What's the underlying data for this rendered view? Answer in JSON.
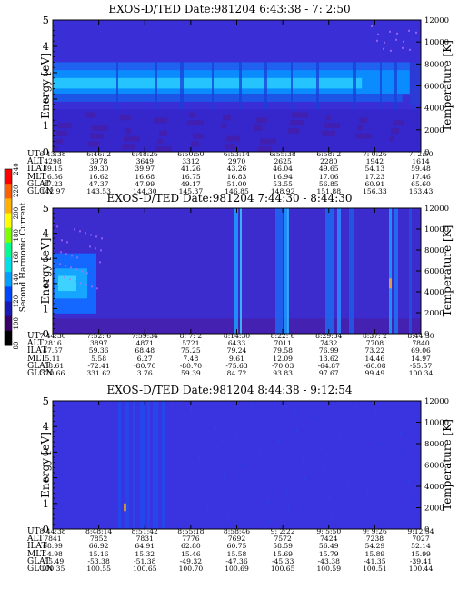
{
  "colorbar": {
    "title": "Second Harmonic Current",
    "ticks": [
      "80",
      "100",
      "120",
      "140",
      "160",
      "180",
      "200",
      "220",
      "240"
    ],
    "colors": [
      "#000000",
      "#3a006a",
      "#1a1ab4",
      "#0046ff",
      "#00a0ff",
      "#00e0e6",
      "#00ff90",
      "#80ff00",
      "#ffff00",
      "#ffb000",
      "#ff6000",
      "#ff0000"
    ]
  },
  "panels": [
    {
      "title": "EXOS-D/TED   Date:981204   6:43:38 - 7: 2:50",
      "ylabel_left": "Energy [eV]",
      "ylabel_right": "Temperature [K]",
      "yticks_left": [
        "0",
        "1",
        "2",
        "3",
        "4",
        "5"
      ],
      "yticks_right": [
        "0",
        "2000",
        "4000",
        "6000",
        "8000",
        "10000",
        "12000"
      ],
      "rows": {
        "UT": [
          "6:43:38",
          "6:46: 2",
          "6:48:26",
          "6:50:50",
          "6:53:14",
          "6:55:38",
          "6:58: 2",
          "7: 0:26",
          "7: 2:50"
        ],
        "ALT": [
          "4298",
          "3978",
          "3649",
          "3312",
          "2970",
          "2625",
          "2280",
          "1942",
          "1614"
        ],
        "ILAT": [
          "39.15",
          "39.30",
          "39.97",
          "41.26",
          "43.26",
          "46.04",
          "49.65",
          "54.13",
          "59.48"
        ],
        "MLT": [
          "16.56",
          "16.62",
          "16.68",
          "16.75",
          "16.83",
          "16.94",
          "17.06",
          "17.23",
          "17.46"
        ],
        "GLAT": [
          "47.23",
          "47.37",
          "47.99",
          "49.17",
          "51.00",
          "53.55",
          "56.85",
          "60.91",
          "65.60"
        ],
        "GLON": [
          "142.97",
          "143.53",
          "144.30",
          "145.37",
          "146.85",
          "148.92",
          "151.88",
          "156.33",
          "163.43"
        ]
      }
    },
    {
      "title": "EXOS-D/TED   Date:981204   7:44:30 - 8:44:30",
      "ylabel_left": "Energy [eV]",
      "ylabel_right": "Temperature [K]",
      "yticks_left": [
        "0",
        "1",
        "2",
        "3",
        "4",
        "5"
      ],
      "yticks_right": [
        "0",
        "2000",
        "4000",
        "6000",
        "8000",
        "10000",
        "12000"
      ],
      "rows": {
        "UT": [
          "7:44:30",
          "7:52: 6",
          "7:59:34",
          "8: 7: 2",
          "8:14:30",
          "8:22: 6",
          "8:29:34",
          "8:37: 2",
          "8:44:30"
        ],
        "ALT": [
          "2816",
          "3897",
          "4871",
          "5721",
          "6433",
          "7011",
          "7432",
          "7708",
          "7840"
        ],
        "ILAT": [
          "47.57",
          "59.36",
          "68.48",
          "75.25",
          "79.24",
          "79.58",
          "76.99",
          "73.22",
          "69.06"
        ],
        "MLT": [
          "5.11",
          "5.58",
          "6.27",
          "7.48",
          "9.61",
          "12.09",
          "13.62",
          "14.46",
          "14.97"
        ],
        "GLAT": [
          "-38.61",
          "-72.41",
          "-80.70",
          "-80.70",
          "-75.63",
          "-70.03",
          "-64.87",
          "-60.08",
          "-55.57"
        ],
        "GLON": [
          "320.66",
          "331.62",
          "3.76",
          "59.39",
          "84.72",
          "93.83",
          "97.67",
          "99.49",
          "100.34"
        ]
      }
    },
    {
      "title": "EXOS-D/TED   Date:981204   8:44:38 - 9:12:54",
      "ylabel_left": "Energy [eV]",
      "ylabel_right": "Temperature [K]",
      "yticks_left": [
        "0",
        "1",
        "2",
        "3",
        "4",
        "5"
      ],
      "yticks_right": [
        "0",
        "2000",
        "4000",
        "6000",
        "8000",
        "10000",
        "12000"
      ],
      "rows": {
        "UT": [
          "8:44:38",
          "8:48:14",
          "8:51:42",
          "8:55:18",
          "8:58:46",
          "9: 2:22",
          "9: 5:50",
          "9: 9:26",
          "9:12:54"
        ],
        "ALT": [
          "7841",
          "7852",
          "7831",
          "7776",
          "7692",
          "7572",
          "7424",
          "7238",
          "7027"
        ],
        "ILAT": [
          "68.99",
          "66.92",
          "64.91",
          "62.80",
          "60.75",
          "58.59",
          "56.49",
          "54.29",
          "52.14"
        ],
        "MLT": [
          "14.98",
          "15.16",
          "15.32",
          "15.46",
          "15.58",
          "15.69",
          "15.79",
          "15.89",
          "15.99"
        ],
        "GLAT": [
          "-55.49",
          "-53.38",
          "-51.38",
          "-49.32",
          "-47.36",
          "-45.33",
          "-43.38",
          "-41.35",
          "-39.41"
        ],
        "GLON": [
          "100.35",
          "100.55",
          "100.65",
          "100.70",
          "100.69",
          "100.65",
          "100.59",
          "100.51",
          "100.44"
        ]
      }
    }
  ],
  "chart_data": [
    {
      "type": "heatmap",
      "title": "EXOS-D/TED   Date:981204   6:43:38 - 7: 2:50",
      "xlabel": "UT",
      "ylabel": "Energy [eV]",
      "ylabel_right": "Temperature [K]",
      "ylim": [
        0,
        5
      ],
      "ylim_right": [
        0,
        12000
      ],
      "x": [
        "6:43:38",
        "6:46: 2",
        "6:48:26",
        "6:50:50",
        "6:53:14",
        "6:55:38",
        "6:58: 2",
        "7: 0:26",
        "7: 2:50"
      ],
      "color_scale": {
        "label": "Second Harmonic Current",
        "range": [
          80,
          240
        ]
      },
      "features": [
        {
          "energy_range": [
            2.2,
            3.1
          ],
          "level": 150,
          "x_range": [
            "6:43:38",
            "7: 1:30"
          ]
        },
        {
          "energy_range": [
            2.4,
            2.8
          ],
          "level": 160,
          "x_range": [
            "6:43:38",
            "6:58: 2"
          ]
        },
        {
          "energy_range": [
            3.1,
            3.4
          ],
          "level": 135,
          "x_range": [
            "6:43:38",
            "7: 2:50"
          ]
        }
      ]
    },
    {
      "type": "heatmap",
      "title": "EXOS-D/TED   Date:981204   7:44:30 - 8:44:30",
      "xlabel": "UT",
      "ylabel": "Energy [eV]",
      "ylabel_right": "Temperature [K]",
      "ylim": [
        0,
        5
      ],
      "ylim_right": [
        0,
        12000
      ],
      "x": [
        "7:44:30",
        "7:52: 6",
        "7:59:34",
        "8: 7: 2",
        "8:14:30",
        "8:22: 6",
        "8:29:34",
        "8:37: 2",
        "8:44:30"
      ],
      "color_scale": {
        "label": "Second Harmonic Current",
        "range": [
          80,
          240
        ]
      },
      "features": [
        {
          "energy_range": [
            0.8,
            3.2
          ],
          "level": 150,
          "x_range": [
            "7:44:30",
            "7:48:30"
          ]
        },
        {
          "energy_range": [
            0,
            5
          ],
          "level": 135,
          "x_range": [
            "8:14:00",
            "8:15:00"
          ]
        },
        {
          "energy_range": [
            0,
            5
          ],
          "level": 135,
          "x_range": [
            "8:21:00",
            "8:26:00"
          ]
        },
        {
          "energy_range": [
            0,
            5
          ],
          "level": 130,
          "x_range": [
            "8:30:00",
            "8:34:00"
          ]
        },
        {
          "energy_range": [
            0,
            5
          ],
          "level": 135,
          "x_range": [
            "8:40:00",
            "8:41:30"
          ]
        }
      ]
    },
    {
      "type": "heatmap",
      "title": "EXOS-D/TED   Date:981204   8:44:38 - 9:12:54",
      "xlabel": "UT",
      "ylabel": "Energy [eV]",
      "ylabel_right": "Temperature [K]",
      "ylim": [
        0,
        5
      ],
      "ylim_right": [
        0,
        12000
      ],
      "x": [
        "8:44:38",
        "8:48:14",
        "8:51:42",
        "8:55:18",
        "8:58:46",
        "9: 2:22",
        "9: 5:50",
        "9: 9:26",
        "9:12:54"
      ],
      "color_scale": {
        "label": "Second Harmonic Current",
        "range": [
          80,
          240
        ]
      },
      "features": [
        {
          "energy_range": [
            0,
            5
          ],
          "level": 125,
          "x_range": [
            "8:48:30",
            "8:51:30"
          ]
        },
        {
          "energy_range": [
            0.7,
            1.0
          ],
          "level": 200,
          "x_range": [
            "8:48:50",
            "8:49:00"
          ]
        }
      ]
    }
  ]
}
